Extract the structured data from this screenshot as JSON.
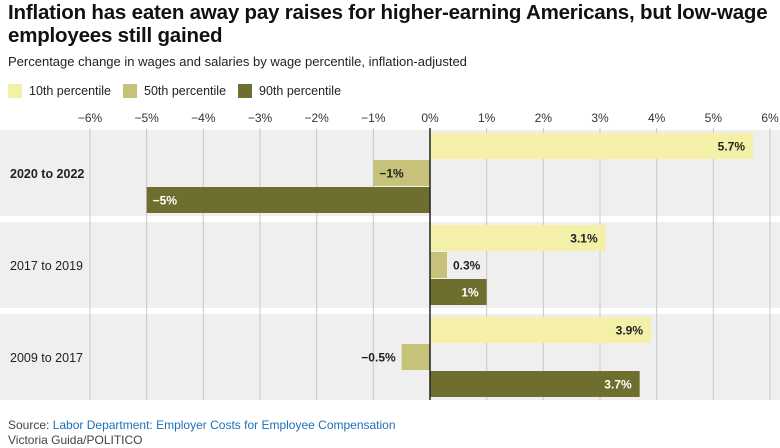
{
  "title": "Inflation has eaten away pay raises for higher-earning Americans, but low-wage employees still gained",
  "subtitle": "Percentage change in wages and salaries by wage percentile, inflation-adjusted",
  "source": {
    "prefix": "Source: ",
    "text": "Labor Department: Employer Costs for Employee Compensation"
  },
  "credit": "Victoria Guida/POLITICO",
  "colors": {
    "p10": "#f5f0a8",
    "p50": "#c6c27a",
    "p90": "#6e6e2f",
    "band": "#efefef",
    "grid": "#c8c8c8",
    "zero": "#222222"
  },
  "chart_data": {
    "type": "bar",
    "orientation": "horizontal",
    "xlim": [
      -6,
      6
    ],
    "ticks": [
      "−6%",
      "−5%",
      "−4%",
      "−3%",
      "−2%",
      "−1%",
      "0%",
      "1%",
      "2%",
      "3%",
      "4%",
      "5%",
      "6%"
    ],
    "tick_values": [
      -6,
      -5,
      -4,
      -3,
      -2,
      -1,
      0,
      1,
      2,
      3,
      4,
      5,
      6
    ],
    "grid": true,
    "legend_position": "top-left",
    "categories": [
      "2020 to 2022",
      "2017 to 2019",
      "2009 to 2017"
    ],
    "category_bold": [
      true,
      false,
      false
    ],
    "series": [
      {
        "name": "10th percentile",
        "color_key": "p10",
        "values": [
          5.7,
          3.1,
          3.9
        ],
        "labels": [
          "5.7%",
          "3.1%",
          "3.9%"
        ]
      },
      {
        "name": "50th percentile",
        "color_key": "p50",
        "values": [
          -1,
          0.3,
          -0.5
        ],
        "labels": [
          "−1%",
          "0.3%",
          "−0.5%"
        ]
      },
      {
        "name": "90th percentile",
        "color_key": "p90",
        "values": [
          -5,
          1,
          3.7
        ],
        "labels": [
          "−5%",
          "1%",
          "3.7%"
        ]
      }
    ]
  }
}
